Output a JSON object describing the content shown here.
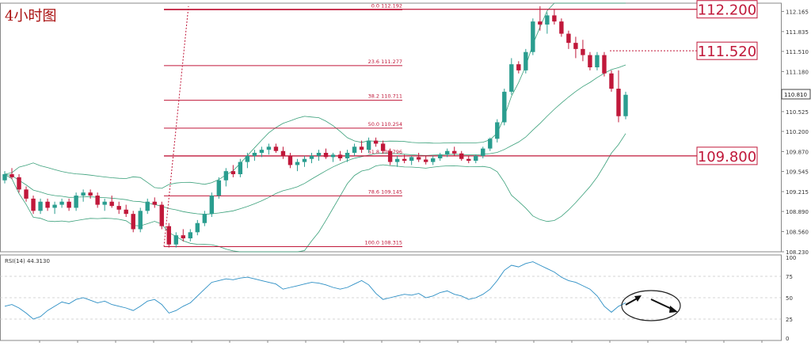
{
  "title": "4小时图",
  "colors": {
    "bull": "#2a9d8f",
    "bear": "#c0183a",
    "level_line": "#c0183a",
    "band": "#3aa07a",
    "rsi": "#2b8ec4",
    "grid": "#c8c8c8"
  },
  "chart_data": [
    {
      "type": "candlestick",
      "panel": "price",
      "ylim": [
        108.23,
        112.3
      ],
      "y_ticks": [
        "112.165",
        "111.835",
        "111.510",
        "111.180",
        "110.855",
        "110.525",
        "110.200",
        "109.870",
        "109.545",
        "109.215",
        "108.890",
        "108.560",
        "108.230"
      ],
      "current_price_label": "110.810",
      "fibonacci_levels": [
        {
          "label": "0.0  112.192",
          "value": 112.192
        },
        {
          "label": "23.6  111.277",
          "value": 111.277
        },
        {
          "label": "38.2  110.711",
          "value": 110.711
        },
        {
          "label": "50.0  110.254",
          "value": 110.254
        },
        {
          "label": "61.8  109.796",
          "value": 109.796
        },
        {
          "label": "78.6  109.145",
          "value": 109.145
        },
        {
          "label": "100.0  108.315",
          "value": 108.315
        }
      ],
      "key_levels": [
        {
          "label": "112.200",
          "value": 112.2,
          "style": "solid"
        },
        {
          "label": "111.520",
          "value": 111.52,
          "style": "dashed"
        },
        {
          "label": "109.800",
          "value": 109.8,
          "style": "solid"
        }
      ],
      "candles": [
        [
          109.4,
          109.55,
          109.35,
          109.5
        ],
        [
          109.5,
          109.6,
          109.42,
          109.45
        ],
        [
          109.45,
          109.5,
          109.2,
          109.25
        ],
        [
          109.25,
          109.3,
          109.05,
          109.1
        ],
        [
          109.1,
          109.15,
          108.85,
          108.9
        ],
        [
          108.9,
          109.1,
          108.85,
          109.05
        ],
        [
          109.05,
          109.1,
          108.9,
          108.95
        ],
        [
          108.95,
          109.05,
          108.85,
          109.0
        ],
        [
          109.0,
          109.1,
          108.95,
          109.05
        ],
        [
          109.05,
          109.1,
          108.9,
          108.95
        ],
        [
          108.95,
          109.2,
          108.9,
          109.15
        ],
        [
          109.15,
          109.25,
          109.05,
          109.2
        ],
        [
          109.2,
          109.25,
          109.1,
          109.15
        ],
        [
          109.15,
          109.2,
          108.95,
          109.0
        ],
        [
          109.0,
          109.1,
          108.9,
          109.05
        ],
        [
          109.05,
          109.15,
          108.95,
          108.98
        ],
        [
          108.98,
          109.05,
          108.85,
          108.92
        ],
        [
          108.92,
          109.0,
          108.8,
          108.85
        ],
        [
          108.85,
          108.9,
          108.55,
          108.6
        ],
        [
          108.6,
          108.95,
          108.55,
          108.9
        ],
        [
          108.9,
          109.1,
          108.85,
          109.05
        ],
        [
          109.05,
          109.12,
          108.95,
          109.0
        ],
        [
          109.0,
          109.05,
          108.6,
          108.65
        ],
        [
          108.65,
          108.7,
          108.3,
          108.35
        ],
        [
          108.35,
          108.55,
          108.3,
          108.5
        ],
        [
          108.5,
          108.6,
          108.4,
          108.45
        ],
        [
          108.45,
          108.6,
          108.4,
          108.55
        ],
        [
          108.55,
          108.75,
          108.5,
          108.7
        ],
        [
          108.7,
          108.9,
          108.65,
          108.85
        ],
        [
          108.85,
          109.2,
          108.8,
          109.15
        ],
        [
          109.15,
          109.45,
          109.1,
          109.4
        ],
        [
          109.4,
          109.6,
          109.3,
          109.55
        ],
        [
          109.55,
          109.65,
          109.45,
          109.5
        ],
        [
          109.5,
          109.75,
          109.45,
          109.7
        ],
        [
          109.7,
          109.85,
          109.6,
          109.8
        ],
        [
          109.8,
          109.9,
          109.72,
          109.85
        ],
        [
          109.85,
          109.95,
          109.78,
          109.9
        ],
        [
          109.9,
          110.0,
          109.82,
          109.95
        ],
        [
          109.95,
          110.0,
          109.85,
          109.88
        ],
        [
          109.88,
          109.95,
          109.75,
          109.8
        ],
        [
          109.8,
          109.85,
          109.6,
          109.65
        ],
        [
          109.65,
          109.75,
          109.55,
          109.7
        ],
        [
          109.7,
          109.8,
          109.62,
          109.75
        ],
        [
          109.75,
          109.85,
          109.68,
          109.8
        ],
        [
          109.8,
          109.9,
          109.72,
          109.85
        ],
        [
          109.85,
          109.92,
          109.75,
          109.78
        ],
        [
          109.78,
          109.85,
          109.7,
          109.82
        ],
        [
          109.82,
          109.88,
          109.72,
          109.76
        ],
        [
          109.76,
          109.9,
          109.7,
          109.85
        ],
        [
          109.85,
          110.0,
          109.8,
          109.95
        ],
        [
          109.95,
          110.05,
          109.85,
          109.9
        ],
        [
          109.9,
          110.1,
          109.85,
          110.05
        ],
        [
          110.05,
          110.1,
          109.95,
          110.0
        ],
        [
          110.0,
          110.05,
          109.85,
          109.88
        ],
        [
          109.88,
          109.92,
          109.65,
          109.7
        ],
        [
          109.7,
          109.8,
          109.62,
          109.75
        ],
        [
          109.75,
          109.82,
          109.68,
          109.72
        ],
        [
          109.72,
          109.8,
          109.65,
          109.78
        ],
        [
          109.78,
          109.85,
          109.7,
          109.74
        ],
        [
          109.74,
          109.8,
          109.66,
          109.7
        ],
        [
          109.7,
          109.8,
          109.65,
          109.76
        ],
        [
          109.76,
          109.85,
          109.72,
          109.82
        ],
        [
          109.82,
          109.92,
          109.78,
          109.88
        ],
        [
          109.88,
          109.95,
          109.8,
          109.84
        ],
        [
          109.84,
          109.88,
          109.72,
          109.75
        ],
        [
          109.75,
          109.8,
          109.68,
          109.72
        ],
        [
          109.72,
          109.82,
          109.68,
          109.8
        ],
        [
          109.8,
          109.95,
          109.76,
          109.92
        ],
        [
          109.92,
          110.1,
          109.88,
          110.08
        ],
        [
          110.08,
          110.4,
          110.02,
          110.35
        ],
        [
          110.35,
          110.9,
          110.3,
          110.85
        ],
        [
          110.85,
          111.4,
          110.8,
          111.3
        ],
        [
          111.3,
          111.35,
          111.15,
          111.2
        ],
        [
          111.2,
          111.55,
          111.15,
          111.5
        ],
        [
          111.5,
          112.05,
          111.45,
          112.0
        ],
        [
          112.0,
          112.25,
          111.85,
          111.95
        ],
        [
          111.95,
          112.15,
          111.8,
          112.1
        ],
        [
          112.1,
          112.2,
          111.95,
          112.0
        ],
        [
          112.0,
          112.05,
          111.75,
          111.8
        ],
        [
          111.8,
          111.85,
          111.55,
          111.65
        ],
        [
          111.65,
          111.75,
          111.4,
          111.55
        ],
        [
          111.55,
          111.7,
          111.35,
          111.45
        ],
        [
          111.45,
          111.5,
          111.2,
          111.25
        ],
        [
          111.25,
          111.5,
          111.2,
          111.45
        ],
        [
          111.45,
          111.5,
          111.1,
          111.15
        ],
        [
          111.15,
          111.2,
          110.85,
          110.9
        ],
        [
          110.9,
          111.2,
          110.35,
          110.45
        ],
        [
          110.45,
          110.85,
          110.4,
          110.8
        ]
      ]
    },
    {
      "type": "line",
      "panel": "rsi",
      "title": "RSI(14) 44.3130",
      "ylim": [
        0,
        100
      ],
      "y_ticks": [
        "100",
        "75",
        "50",
        "25",
        "0"
      ],
      "values": [
        40,
        42,
        38,
        32,
        25,
        28,
        35,
        40,
        45,
        43,
        48,
        50,
        47,
        44,
        46,
        42,
        40,
        38,
        35,
        40,
        46,
        48,
        42,
        32,
        35,
        40,
        44,
        52,
        60,
        68,
        70,
        72,
        71,
        73,
        74,
        72,
        70,
        68,
        66,
        60,
        62,
        64,
        66,
        68,
        67,
        65,
        62,
        60,
        62,
        66,
        70,
        65,
        55,
        48,
        50,
        52,
        54,
        53,
        55,
        50,
        52,
        56,
        58,
        54,
        52,
        48,
        50,
        54,
        60,
        70,
        82,
        88,
        86,
        90,
        92,
        88,
        84,
        80,
        74,
        70,
        68,
        64,
        60,
        52,
        40,
        33,
        40,
        44
      ]
    }
  ],
  "annotations": {
    "rsi_arrows": [
      "up-arrow",
      "down-arrow"
    ]
  }
}
